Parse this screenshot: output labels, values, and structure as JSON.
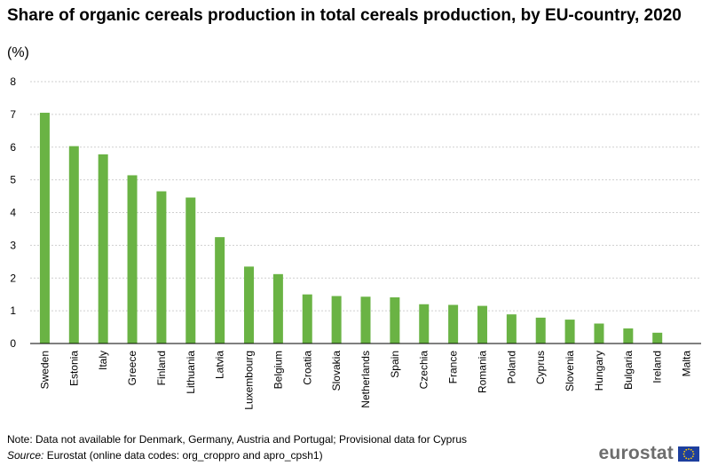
{
  "title": "Share of organic cereals production in total cereals production, by EU-country, 2020",
  "unit": "(%)",
  "note": "Note: Data not available for Denmark, Germany, Austria and Portugal; Provisional data for Cyprus",
  "source_label": "Source:",
  "source_text": "Eurostat (online data codes: org_croppro and apro_cpsh1)",
  "logo_text": "eurostat",
  "colors": {
    "bar": "#6ab344",
    "grid": "#cfcfcf",
    "axis": "#000000",
    "flag": "#1d3f9e",
    "stars": "#ffcc00"
  },
  "chart_data": {
    "type": "bar",
    "title": "Share of organic cereals production in total cereals production, by EU-country, 2020",
    "ylabel": "(%)",
    "ylim": [
      0,
      8
    ],
    "yticks": [
      "0",
      "1",
      "2",
      "3",
      "4",
      "5",
      "6",
      "7",
      "8"
    ],
    "grid": true,
    "categories": [
      "Sweden",
      "Estonia",
      "Italy",
      "Greece",
      "Finland",
      "Lithuania",
      "Latvia",
      "Luxembourg",
      "Belgium",
      "Croatia",
      "Slovakia",
      "Netherlands",
      "Spain",
      "Czechia",
      "France",
      "Romania",
      "Poland",
      "Cyprus",
      "Slovenia",
      "Hungary",
      "Bulgaria",
      "Ireland",
      "Malta"
    ],
    "values": [
      7.05,
      6.03,
      5.78,
      5.14,
      4.65,
      4.46,
      3.25,
      2.35,
      2.12,
      1.5,
      1.45,
      1.43,
      1.41,
      1.2,
      1.18,
      1.15,
      0.89,
      0.79,
      0.73,
      0.61,
      0.46,
      0.33,
      0
    ]
  }
}
